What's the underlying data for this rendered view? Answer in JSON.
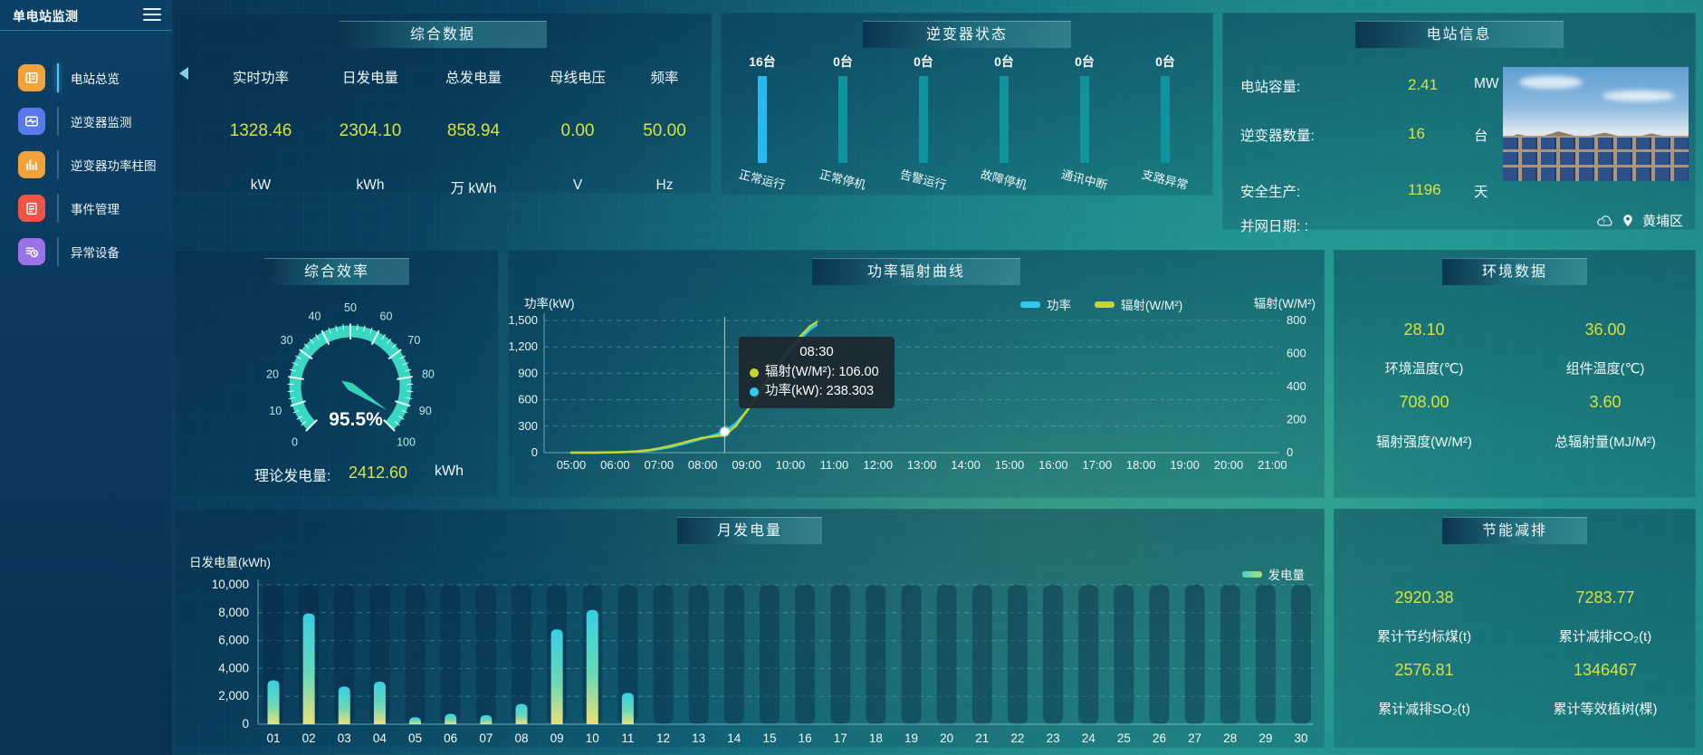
{
  "app": {
    "title": "单电站监测",
    "location": "黄埔区"
  },
  "sidebar": {
    "items": [
      {
        "label": "电站总览",
        "icon": "overview-icon",
        "color": "#f0a23b",
        "active": true
      },
      {
        "label": "逆变器监测",
        "icon": "inverter-monitor-icon",
        "color": "#5a7aec",
        "active": false
      },
      {
        "label": "逆变器功率柱图",
        "icon": "inverter-power-bars-icon",
        "color": "#f0a23b",
        "active": false
      },
      {
        "label": "事件管理",
        "icon": "event-management-icon",
        "color": "#f05347",
        "active": false
      },
      {
        "label": "异常设备",
        "icon": "abnormal-device-icon",
        "color": "#9c72e9",
        "active": false
      }
    ]
  },
  "summary": {
    "title": "综合数据",
    "metrics": [
      {
        "label": "实时功率",
        "value": "1328.46",
        "unit": "kW"
      },
      {
        "label": "日发电量",
        "value": "2304.10",
        "unit": "kWh"
      },
      {
        "label": "总发电量",
        "value": "858.94",
        "unit": "万 kWh"
      },
      {
        "label": "母线电压",
        "value": "0.00",
        "unit": "V"
      },
      {
        "label": "频率",
        "value": "50.00",
        "unit": "Hz"
      }
    ]
  },
  "inverter_status": {
    "title": "逆变器状态",
    "bars": [
      {
        "count": "16台",
        "label": "正常运行",
        "color": "#29b9f2"
      },
      {
        "count": "0台",
        "label": "正常停机",
        "color": "#0f939c"
      },
      {
        "count": "0台",
        "label": "告警运行",
        "color": "#0f939c"
      },
      {
        "count": "0台",
        "label": "故障停机",
        "color": "#0f939c"
      },
      {
        "count": "0台",
        "label": "通讯中断",
        "color": "#0f939c"
      },
      {
        "count": "0台",
        "label": "支路异常",
        "color": "#0f939c"
      }
    ]
  },
  "station_info": {
    "title": "电站信息",
    "rows": [
      {
        "label": "电站容量:",
        "value": "2.41",
        "unit": "MW"
      },
      {
        "label": "逆变器数量:",
        "value": "16",
        "unit": "台"
      },
      {
        "label": "安全生产:",
        "value": "1196",
        "unit": "天"
      },
      {
        "label": "并网日期:  :",
        "value": "",
        "unit": ""
      }
    ]
  },
  "efficiency": {
    "title": "综合效率",
    "theory_label": "理论发电量:",
    "theory_value": "2412.60",
    "theory_unit": "kWh"
  },
  "environment": {
    "title": "环境数据",
    "metrics": [
      {
        "value": "28.10",
        "label": "环境温度(℃)"
      },
      {
        "value": "36.00",
        "label": "组件温度(℃)"
      },
      {
        "value": "708.00",
        "label": "辐射强度(W/M²)"
      },
      {
        "value": "3.60",
        "label": "总辐射量(MJ/M²)"
      }
    ]
  },
  "savings": {
    "title": "节能减排",
    "metrics": [
      {
        "value": "2920.38",
        "label": "累计节约标煤(t)"
      },
      {
        "value": "7283.77",
        "label": "累计减排CO₂(t)"
      },
      {
        "value": "2576.81",
        "label": "累计减排SO₂(t)"
      },
      {
        "value": "1346467",
        "label": "累计等效植树(棵)"
      }
    ]
  },
  "chart_data": [
    {
      "id": "efficiency_gauge",
      "type": "gauge",
      "title": "综合效率",
      "min": 0,
      "max": 100,
      "value": 95.5,
      "value_label": "95.5%",
      "tick_labels": [
        "0",
        "10",
        "20",
        "30",
        "40",
        "50",
        "60",
        "70",
        "80",
        "90",
        "100"
      ],
      "band_color": "#38d8c2",
      "needle_color": "#35d3b8"
    },
    {
      "id": "power_radiation",
      "type": "line",
      "title": "功率辐射曲线",
      "ylabel_left": "功率(kW)",
      "ylabel_right": "辐射(W/M²)",
      "ylim_left": [
        0,
        1500
      ],
      "ylim_right": [
        0,
        800
      ],
      "yticks_left": [
        "0",
        "300",
        "600",
        "900",
        "1,200",
        "1,500"
      ],
      "yticks_right": [
        "0",
        "200",
        "400",
        "600",
        "800"
      ],
      "x_ticks": [
        "05:00",
        "06:00",
        "07:00",
        "08:00",
        "09:00",
        "10:00",
        "11:00",
        "12:00",
        "13:00",
        "14:00",
        "15:00",
        "16:00",
        "17:00",
        "18:00",
        "19:00",
        "20:00",
        "21:00"
      ],
      "legend": [
        {
          "name": "功率",
          "color": "#2fc8f2"
        },
        {
          "name": "辐射(W/M²)",
          "color": "#c8d62b"
        }
      ],
      "series": [
        {
          "name": "功率",
          "axis": "left",
          "color": "#2fc8f2",
          "points": [
            [
              5,
              0
            ],
            [
              5.5,
              0
            ],
            [
              6,
              3
            ],
            [
              6.25,
              6
            ],
            [
              6.5,
              12
            ],
            [
              6.75,
              22
            ],
            [
              7,
              40
            ],
            [
              7.25,
              62
            ],
            [
              7.5,
              92
            ],
            [
              7.75,
              125
            ],
            [
              8,
              160
            ],
            [
              8.25,
              197
            ],
            [
              8.5,
              238.3
            ],
            [
              8.75,
              330
            ],
            [
              9,
              470
            ],
            [
              9.25,
              640
            ],
            [
              9.5,
              820
            ],
            [
              9.75,
              1000
            ],
            [
              10,
              1160
            ],
            [
              10.25,
              1300
            ],
            [
              10.45,
              1400
            ],
            [
              10.6,
              1450
            ]
          ]
        },
        {
          "name": "辐射(W/M²)",
          "axis": "right",
          "color": "#c8d62b",
          "points": [
            [
              5,
              0
            ],
            [
              5.5,
              0
            ],
            [
              6,
              2
            ],
            [
              6.25,
              4
            ],
            [
              6.5,
              8
            ],
            [
              6.75,
              15
            ],
            [
              7,
              26
            ],
            [
              7.25,
              40
            ],
            [
              7.5,
              56
            ],
            [
              7.75,
              74
            ],
            [
              8,
              90
            ],
            [
              8.25,
              98
            ],
            [
              8.5,
              106
            ],
            [
              8.75,
              160
            ],
            [
              9,
              250
            ],
            [
              9.25,
              350
            ],
            [
              9.5,
              450
            ],
            [
              9.75,
              545
            ],
            [
              10,
              635
            ],
            [
              10.25,
              710
            ],
            [
              10.45,
              765
            ],
            [
              10.6,
              790
            ]
          ]
        }
      ],
      "tooltip": {
        "time": "08:30",
        "x": 8.5,
        "rows": [
          {
            "name": "辐射(W/M²)",
            "value": "106.00",
            "color": "#c8d62b"
          },
          {
            "name": "功率(kW)",
            "value": "238.303",
            "color": "#2fc8f2"
          }
        ]
      }
    },
    {
      "id": "monthly_generation",
      "type": "bar",
      "title": "月发电量",
      "ylabel": "日发电量(kWh)",
      "ylim": [
        0,
        10000
      ],
      "yticks": [
        "0",
        "2,000",
        "4,000",
        "6,000",
        "8,000",
        "10,000"
      ],
      "legend": [
        {
          "name": "发电量",
          "colors": [
            "#49d0c9",
            "#a8e077"
          ]
        }
      ],
      "categories": [
        "01",
        "02",
        "03",
        "04",
        "05",
        "06",
        "07",
        "08",
        "09",
        "10",
        "11",
        "12",
        "13",
        "14",
        "15",
        "16",
        "17",
        "18",
        "19",
        "20",
        "21",
        "22",
        "23",
        "24",
        "25",
        "26",
        "27",
        "28",
        "29",
        "30"
      ],
      "values": [
        3150,
        7950,
        2700,
        3050,
        500,
        750,
        650,
        1450,
        6800,
        8200,
        2250,
        0,
        0,
        0,
        0,
        0,
        0,
        0,
        0,
        0,
        0,
        0,
        0,
        0,
        0,
        0,
        0,
        0,
        0,
        0
      ],
      "bar_gradient": [
        "#37cfe3",
        "#69d8b8",
        "#e9e178"
      ]
    }
  ]
}
